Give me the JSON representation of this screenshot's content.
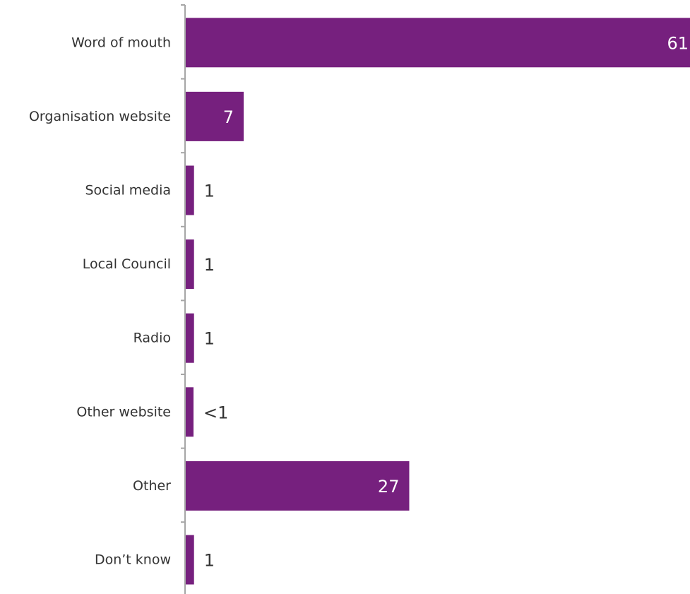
{
  "chart_data": {
    "type": "bar",
    "orientation": "horizontal",
    "categories": [
      "Word of mouth",
      "Organisation website",
      "Social media",
      "Local Council",
      "Radio",
      "Other website",
      "Other",
      "Don’t know"
    ],
    "values": [
      61,
      7,
      1,
      1,
      1,
      0.5,
      27,
      1
    ],
    "value_labels": [
      "61",
      "7",
      "1",
      "1",
      "1",
      "<1",
      "27",
      "1"
    ],
    "xlim": [
      0,
      61
    ],
    "grid": false,
    "legend": "none",
    "bar_color": "#76207e",
    "label_color_inside": "#ffffff",
    "label_color_outside": "#333333"
  }
}
